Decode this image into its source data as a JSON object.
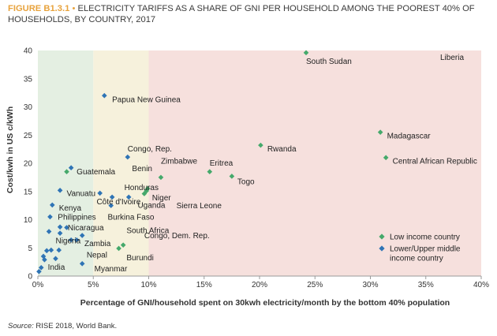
{
  "title": {
    "figure_id": "FIGURE B1.3.1",
    "bullet": "•",
    "text": "ELECTRICITY TARIFFS AS A SHARE OF GNI PER HOUSEHOLD AMONG THE POOREST 40% OF HOUSEHOLDS, BY COUNTRY, 2017"
  },
  "source": {
    "label": "Source:",
    "text": "RISE 2018, World Bank."
  },
  "colors": {
    "low_income": "#45a96b",
    "lower_upper_middle": "#2f74b5",
    "zone_green": "#e4efe2",
    "zone_yellow": "#f6f1dc",
    "zone_red": "#f6e0dd"
  },
  "chart_data": {
    "type": "scatter",
    "xlabel": "Percentage of GNI/household spent on 30kwh electricity/month by the bottom 40% population",
    "ylabel": "Cost/kwh in US c/kWh",
    "xlim": [
      0,
      40
    ],
    "ylim": [
      0,
      40
    ],
    "x_ticks": [
      0,
      5,
      10,
      15,
      20,
      25,
      30,
      35,
      40
    ],
    "x_tick_labels": [
      "0%",
      "5%",
      "10%",
      "15%",
      "20%",
      "25%",
      "30%",
      "35%",
      "40%"
    ],
    "y_ticks": [
      0,
      5,
      10,
      15,
      20,
      25,
      30,
      35,
      40
    ],
    "y_tick_labels": [
      "0",
      "5",
      "10",
      "15",
      "20",
      "25",
      "30",
      "35",
      "40"
    ],
    "background_bands": [
      {
        "from": 0,
        "to": 5,
        "color": "zone_green"
      },
      {
        "from": 5,
        "to": 10,
        "color": "zone_yellow"
      },
      {
        "from": 10,
        "to": 40,
        "color": "zone_red"
      }
    ],
    "legend": {
      "position": "bottom-right",
      "items": [
        {
          "key": "low",
          "label": "Low income country"
        },
        {
          "key": "mid",
          "label": "Lower/Upper middle income country"
        }
      ]
    },
    "series": [
      {
        "name": "Low income country",
        "key": "low",
        "points": [
          {
            "x": 24.2,
            "y": 39.6
          },
          {
            "x": 20.1,
            "y": 23.2
          },
          {
            "x": 30.9,
            "y": 25.5
          },
          {
            "x": 31.4,
            "y": 21.0
          },
          {
            "x": 15.5,
            "y": 18.5
          },
          {
            "x": 17.5,
            "y": 17.7
          },
          {
            "x": 11.1,
            "y": 17.5
          },
          {
            "x": 9.9,
            "y": 15.5
          },
          {
            "x": 9.6,
            "y": 14.6
          },
          {
            "x": 9.8,
            "y": 15.1
          },
          {
            "x": 7.7,
            "y": 5.5
          },
          {
            "x": 7.3,
            "y": 4.9
          },
          {
            "x": 2.6,
            "y": 18.5
          }
        ]
      },
      {
        "name": "Lower/Upper middle income country",
        "key": "mid",
        "points": [
          {
            "x": 6.0,
            "y": 32.0
          },
          {
            "x": 8.1,
            "y": 21.1
          },
          {
            "x": 3.0,
            "y": 19.2
          },
          {
            "x": 2.0,
            "y": 15.2
          },
          {
            "x": 5.6,
            "y": 14.7
          },
          {
            "x": 6.7,
            "y": 14.0
          },
          {
            "x": 8.2,
            "y": 14.0
          },
          {
            "x": 6.6,
            "y": 12.5
          },
          {
            "x": 1.3,
            "y": 12.6
          },
          {
            "x": 1.1,
            "y": 10.5
          },
          {
            "x": 2.0,
            "y": 8.7
          },
          {
            "x": 2.6,
            "y": 8.6
          },
          {
            "x": 1.0,
            "y": 7.9
          },
          {
            "x": 2.0,
            "y": 7.6
          },
          {
            "x": 4.0,
            "y": 7.2
          },
          {
            "x": 3.0,
            "y": 6.4
          },
          {
            "x": 3.5,
            "y": 6.4
          },
          {
            "x": 0.8,
            "y": 4.5
          },
          {
            "x": 1.2,
            "y": 4.6
          },
          {
            "x": 1.9,
            "y": 4.6
          },
          {
            "x": 1.6,
            "y": 3.1
          },
          {
            "x": 0.5,
            "y": 3.5
          },
          {
            "x": 0.6,
            "y": 2.9
          },
          {
            "x": 0.3,
            "y": 1.5
          },
          {
            "x": 0.1,
            "y": 0.8
          },
          {
            "x": 4.0,
            "y": 2.2
          }
        ]
      }
    ],
    "annotations": [
      {
        "text": "South Sudan",
        "x": 24.2,
        "y": 38.1
      },
      {
        "text": "Liberia",
        "x": 36.3,
        "y": 38.8
      },
      {
        "text": "Papua New Guinea",
        "x": 6.7,
        "y": 31.3
      },
      {
        "text": "Madagascar",
        "x": 31.5,
        "y": 24.9
      },
      {
        "text": "Rwanda",
        "x": 20.7,
        "y": 22.6
      },
      {
        "text": "Congo, Rep.",
        "x": 8.1,
        "y": 22.6
      },
      {
        "text": "Central African Republic",
        "x": 32.0,
        "y": 20.4
      },
      {
        "text": "Zimbabwe",
        "x": 11.1,
        "y": 20.4
      },
      {
        "text": "Benin",
        "x": 8.5,
        "y": 19.1
      },
      {
        "text": "Eritrea",
        "x": 15.5,
        "y": 20.1
      },
      {
        "text": "Guatemala",
        "x": 3.5,
        "y": 18.5
      },
      {
        "text": "Togo",
        "x": 18.0,
        "y": 16.8
      },
      {
        "text": "Honduras",
        "x": 7.8,
        "y": 15.7
      },
      {
        "text": "Vanuatu",
        "x": 2.6,
        "y": 14.7
      },
      {
        "text": "Niger",
        "x": 10.3,
        "y": 13.9
      },
      {
        "text": "Sierra Leone",
        "x": 12.5,
        "y": 12.5
      },
      {
        "text": "Côte d'Ivoire",
        "x": 5.3,
        "y": 13.2
      },
      {
        "text": "Uganda",
        "x": 9.0,
        "y": 12.6
      },
      {
        "text": "Kenya",
        "x": 1.9,
        "y": 12.1
      },
      {
        "text": "Philippines",
        "x": 1.8,
        "y": 10.5
      },
      {
        "text": "Burkina Faso",
        "x": 6.3,
        "y": 10.5
      },
      {
        "text": "Nicaragua",
        "x": 2.7,
        "y": 8.6
      },
      {
        "text": "South Africa",
        "x": 8.0,
        "y": 8.1
      },
      {
        "text": "Congo, Dem. Rep.",
        "x": 9.6,
        "y": 7.2
      },
      {
        "text": "Nigeria",
        "x": 1.6,
        "y": 6.3
      },
      {
        "text": "Zambia",
        "x": 4.2,
        "y": 5.8
      },
      {
        "text": "Nepal",
        "x": 4.4,
        "y": 3.8
      },
      {
        "text": "Burundi",
        "x": 8.0,
        "y": 3.3
      },
      {
        "text": "India",
        "x": 0.9,
        "y": 1.6
      },
      {
        "text": "Myanmar",
        "x": 5.1,
        "y": 1.3
      }
    ]
  }
}
